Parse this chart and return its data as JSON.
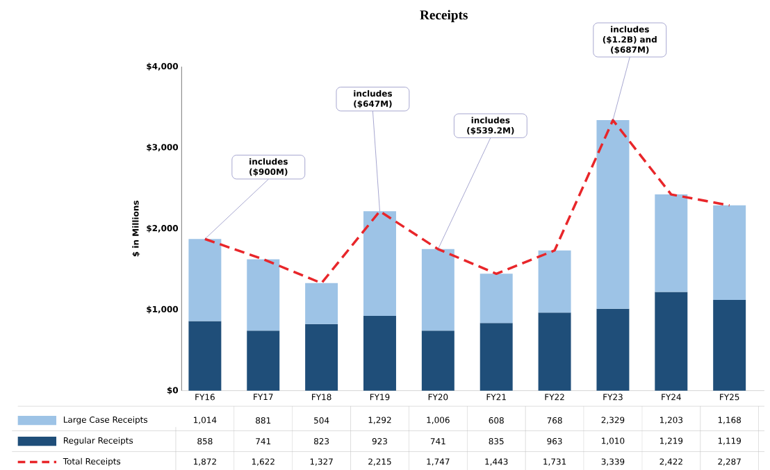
{
  "chart_data": {
    "type": "bar",
    "stacked": true,
    "title": "Receipts",
    "ylabel": "$ in Millions",
    "categories": [
      "FY16",
      "FY17",
      "FY18",
      "FY19",
      "FY20",
      "FY21",
      "FY22",
      "FY23",
      "FY24",
      "FY25"
    ],
    "series": [
      {
        "name": "Regular Receipts",
        "color": "#1f4e79",
        "values": [
          858,
          741,
          823,
          923,
          741,
          835,
          963,
          1010,
          1219,
          1119
        ],
        "value_labels": [
          "858",
          "741",
          "823",
          "923",
          "741",
          "835",
          "963",
          "1,010",
          "1,219",
          "1,119"
        ]
      },
      {
        "name": "Large Case Receipts",
        "color": "#9dc3e6",
        "values": [
          1014,
          881,
          504,
          1292,
          1006,
          608,
          768,
          2329,
          1203,
          1168
        ],
        "value_labels": [
          "1,014",
          "881",
          "504",
          "1,292",
          "1,006",
          "608",
          "768",
          "2,329",
          "1,203",
          "1,168"
        ]
      },
      {
        "name": "Total Receipts",
        "type": "line",
        "color": "#e8262a",
        "line_style": "dashed",
        "marker": "none",
        "values": [
          1872,
          1622,
          1327,
          2215,
          1747,
          1443,
          1731,
          3339,
          2422,
          2287
        ],
        "value_labels": [
          "1,872",
          "1,622",
          "1,327",
          "2,215",
          "1,747",
          "1,443",
          "1,731",
          "3,339",
          "2,422",
          "2,287"
        ]
      }
    ],
    "ylim": [
      0,
      4000
    ],
    "yticks": [
      {
        "value": 0,
        "label": "$0"
      },
      {
        "value": 1000,
        "label": "$1,000"
      },
      {
        "value": 2000,
        "label": "$2,000"
      },
      {
        "value": 3000,
        "label": "$3,000"
      },
      {
        "value": 4000,
        "label": "$4,000"
      }
    ],
    "legend": "bottom",
    "annotations": [
      {
        "text": "includes ($900M)",
        "x": "FY16",
        "y": 1872
      },
      {
        "text": "includes ($647M)",
        "x": "FY19",
        "y": 2215
      },
      {
        "text": "includes ($539.2M)",
        "x": "FY20",
        "y": 1747
      },
      {
        "text": "includes ($1.2B) and ($687M)",
        "x": "FY23",
        "y": 3339
      }
    ]
  }
}
